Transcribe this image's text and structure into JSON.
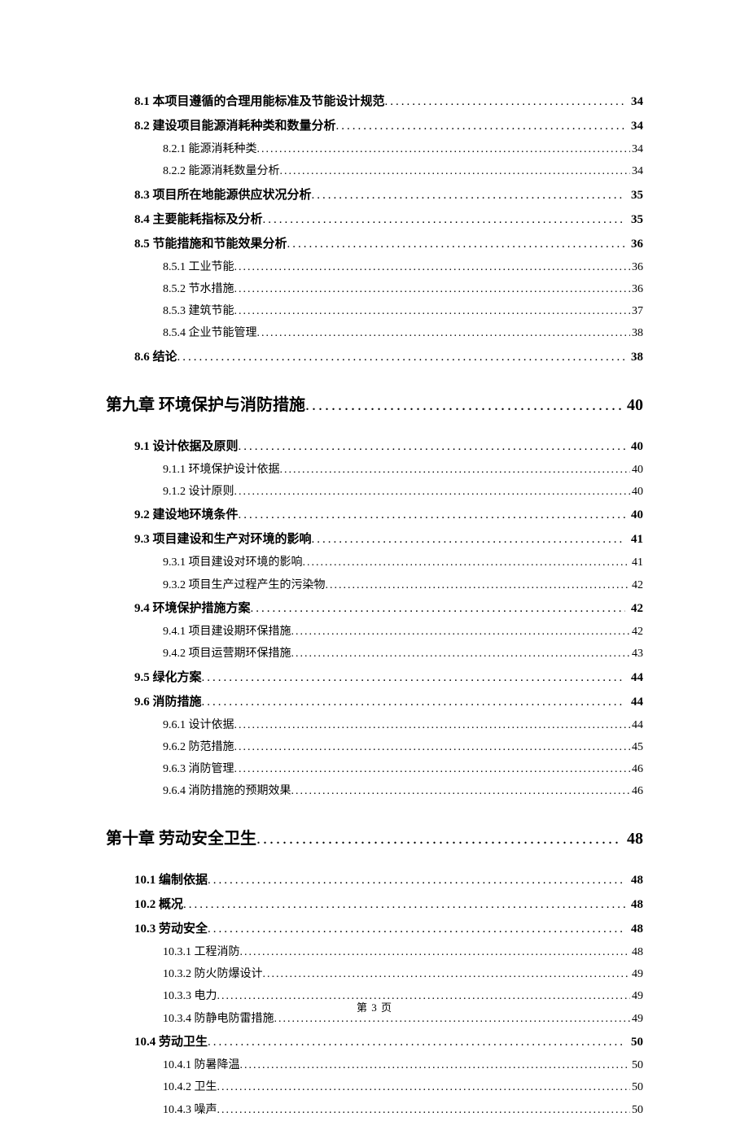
{
  "footer": "第 3 页",
  "entries": [
    {
      "level": "level-1",
      "label": "8.1 本项目遵循的合理用能标准及节能设计规范",
      "page": "34"
    },
    {
      "level": "level-1",
      "label": "8.2 建设项目能源消耗种类和数量分析",
      "page": "34"
    },
    {
      "level": "level-2",
      "label": "8.2.1 能源消耗种类",
      "page": "34"
    },
    {
      "level": "level-2",
      "label": "8.2.2 能源消耗数量分析",
      "page": "34"
    },
    {
      "level": "level-1",
      "label": "8.3 项目所在地能源供应状况分析",
      "page": "35"
    },
    {
      "level": "level-1",
      "label": "8.4 主要能耗指标及分析",
      "page": "35"
    },
    {
      "level": "level-1",
      "label": "8.5 节能措施和节能效果分析",
      "page": "36"
    },
    {
      "level": "level-2",
      "label": "8.5.1 工业节能",
      "page": "36"
    },
    {
      "level": "level-2",
      "label": "8.5.2 节水措施",
      "page": "36"
    },
    {
      "level": "level-2",
      "label": "8.5.3 建筑节能",
      "page": "37"
    },
    {
      "level": "level-2",
      "label": "8.5.4 企业节能管理",
      "page": "38"
    },
    {
      "level": "level-1",
      "label": "8.6 结论",
      "page": "38"
    },
    {
      "level": "chapter",
      "label": "第九章 环境保护与消防措施",
      "page": "40"
    },
    {
      "level": "level-1",
      "label": "9.1 设计依据及原则",
      "page": "40"
    },
    {
      "level": "level-2",
      "label": "9.1.1 环境保护设计依据",
      "page": "40"
    },
    {
      "level": "level-2",
      "label": "9.1.2 设计原则",
      "page": "40"
    },
    {
      "level": "level-1",
      "label": "9.2 建设地环境条件",
      "page": "40"
    },
    {
      "level": "level-1",
      "label": "9.3  项目建设和生产对环境的影响",
      "page": "41"
    },
    {
      "level": "level-2",
      "label": "9.3.1  项目建设对环境的影响",
      "page": "41"
    },
    {
      "level": "level-2",
      "label": "9.3.2 项目生产过程产生的污染物",
      "page": "42"
    },
    {
      "level": "level-1",
      "label": "9.4  环境保护措施方案",
      "page": "42"
    },
    {
      "level": "level-2",
      "label": "9.4.1  项目建设期环保措施",
      "page": "42"
    },
    {
      "level": "level-2",
      "label": "9.4.2  项目运营期环保措施",
      "page": "43"
    },
    {
      "level": "level-1",
      "label": "9.5 绿化方案",
      "page": "44"
    },
    {
      "level": "level-1",
      "label": "9.6 消防措施",
      "page": "44"
    },
    {
      "level": "level-2",
      "label": "9.6.1 设计依据",
      "page": "44"
    },
    {
      "level": "level-2",
      "label": "9.6.2 防范措施",
      "page": "45"
    },
    {
      "level": "level-2",
      "label": "9.6.3 消防管理",
      "page": "46"
    },
    {
      "level": "level-2",
      "label": "9.6.4 消防措施的预期效果",
      "page": "46"
    },
    {
      "level": "chapter",
      "label": "第十章 劳动安全卫生",
      "page": "48"
    },
    {
      "level": "level-1",
      "label": "10.1  编制依据",
      "page": "48"
    },
    {
      "level": "level-1",
      "label": "10.2 概况",
      "page": "48"
    },
    {
      "level": "level-1",
      "label": "10.3  劳动安全",
      "page": "48"
    },
    {
      "level": "level-2",
      "label": "10.3.1 工程消防",
      "page": "48"
    },
    {
      "level": "level-2",
      "label": "10.3.2 防火防爆设计",
      "page": "49"
    },
    {
      "level": "level-2",
      "label": "10.3.3 电力",
      "page": "49"
    },
    {
      "level": "level-2",
      "label": "10.3.4 防静电防雷措施",
      "page": "49"
    },
    {
      "level": "level-1",
      "label": "10.4 劳动卫生",
      "page": "50"
    },
    {
      "level": "level-2",
      "label": "10.4.1 防暑降温",
      "page": "50"
    },
    {
      "level": "level-2",
      "label": "10.4.2 卫生",
      "page": "50"
    },
    {
      "level": "level-2",
      "label": "10.4.3 噪声",
      "page": "50"
    }
  ]
}
